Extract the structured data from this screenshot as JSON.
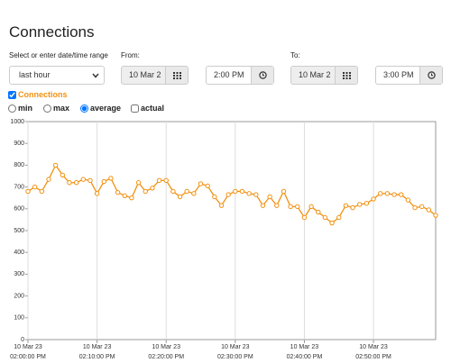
{
  "header": {
    "title": "Connections"
  },
  "range": {
    "label": "Select or enter date/time range",
    "select": "last hour"
  },
  "from": {
    "label": "From:",
    "date": "10 Mar 2",
    "time": "2:00 PM"
  },
  "to": {
    "label": "To:",
    "date": "10 Mar 2",
    "time": "3:00 PM"
  },
  "options": [
    "min",
    "max",
    "average",
    "actual"
  ],
  "chart_data": {
    "type": "line",
    "x": [
      "02:00:00 PM",
      "02:01:00 PM",
      "02:02:00 PM",
      "02:03:00 PM",
      "02:04:00 PM",
      "02:05:00 PM",
      "02:06:00 PM",
      "02:07:00 PM",
      "02:08:00 PM",
      "02:09:00 PM",
      "02:10:00 PM",
      "02:11:00 PM",
      "02:12:00 PM",
      "02:13:00 PM",
      "02:14:00 PM",
      "02:15:00 PM",
      "02:16:00 PM",
      "02:17:00 PM",
      "02:18:00 PM",
      "02:19:00 PM",
      "02:20:00 PM",
      "02:21:00 PM",
      "02:22:00 PM",
      "02:23:00 PM",
      "02:24:00 PM",
      "02:25:00 PM",
      "02:26:00 PM",
      "02:27:00 PM",
      "02:28:00 PM",
      "02:29:00 PM",
      "02:30:00 PM",
      "02:31:00 PM",
      "02:32:00 PM",
      "02:33:00 PM",
      "02:34:00 PM",
      "02:35:00 PM",
      "02:36:00 PM",
      "02:37:00 PM",
      "02:38:00 PM",
      "02:39:00 PM",
      "02:40:00 PM",
      "02:41:00 PM",
      "02:42:00 PM",
      "02:43:00 PM",
      "02:44:00 PM",
      "02:45:00 PM",
      "02:46:00 PM",
      "02:47:00 PM",
      "02:48:00 PM",
      "02:49:00 PM",
      "02:50:00 PM",
      "02:51:00 PM",
      "02:52:00 PM",
      "02:53:00 PM",
      "02:54:00 PM",
      "02:55:00 PM",
      "02:56:00 PM",
      "02:57:00 PM",
      "02:58:00 PM",
      "02:59:00 PM"
    ],
    "series": [
      {
        "name": "Connections",
        "color": "#f29111",
        "values": [
          680,
          700,
          680,
          735,
          800,
          755,
          720,
          720,
          735,
          730,
          670,
          725,
          740,
          675,
          660,
          650,
          720,
          680,
          695,
          730,
          730,
          680,
          655,
          680,
          670,
          715,
          705,
          655,
          615,
          665,
          680,
          680,
          670,
          665,
          615,
          655,
          615,
          680,
          610,
          610,
          560,
          610,
          585,
          560,
          535,
          560,
          615,
          605,
          620,
          625,
          645,
          670,
          670,
          665,
          665,
          640,
          605,
          610,
          595,
          570
        ]
      }
    ],
    "xlim": [
      "02:00:00 PM",
      "02:59:00 PM"
    ],
    "xticks": [
      {
        "value": "02:00:00 PM",
        "label": "10 Mar 23\n02:00:00 PM"
      },
      {
        "value": "02:10:00 PM",
        "label": "10 Mar 23\n02:10:00 PM"
      },
      {
        "value": "02:20:00 PM",
        "label": "10 Mar 23\n02:20:00 PM"
      },
      {
        "value": "02:30:00 PM",
        "label": "10 Mar 23\n02:30:00 PM"
      },
      {
        "value": "02:40:00 PM",
        "label": "10 Mar 23\n02:40:00 PM"
      },
      {
        "value": "02:50:00 PM",
        "label": "10 Mar 23\n02:50:00 PM"
      }
    ],
    "ylim": [
      0,
      1000
    ],
    "yticks": [
      0,
      100,
      200,
      300,
      400,
      500,
      600,
      700,
      800,
      900,
      1000
    ],
    "grid": "x"
  }
}
